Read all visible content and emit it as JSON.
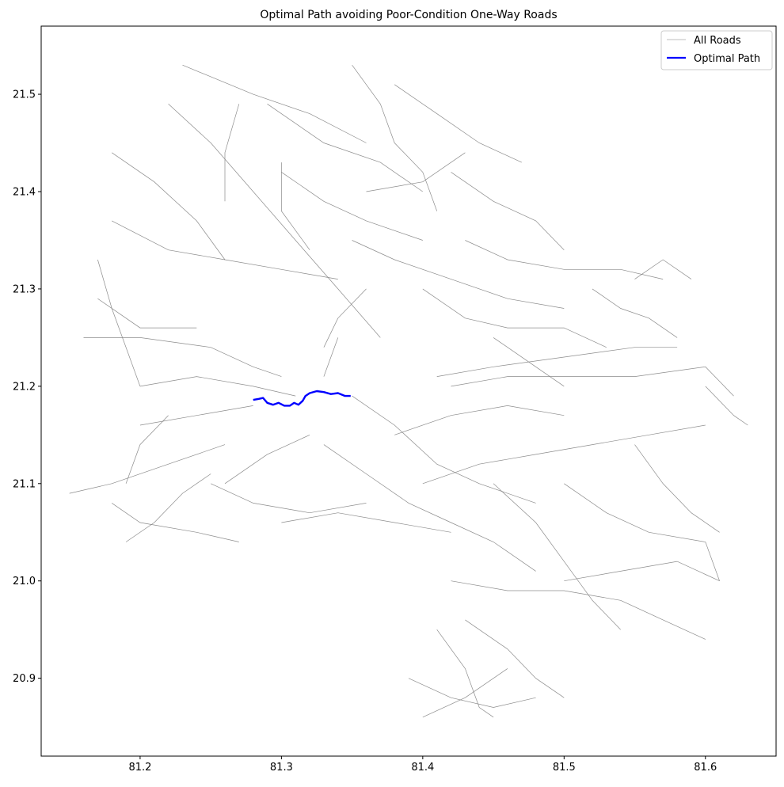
{
  "title": "Optimal Path avoiding Poor-Condition One-Way Roads",
  "legend": {
    "placement": "upper-right",
    "items": [
      {
        "label": "All Roads",
        "color": "#808080"
      },
      {
        "label": "Optimal Path",
        "color": "#0000ff"
      }
    ]
  },
  "chart_data": {
    "type": "map",
    "title": "Optimal Path avoiding Poor-Condition One-Way Roads",
    "xlim": [
      81.13,
      81.65
    ],
    "ylim": [
      20.82,
      21.57
    ],
    "xticks": [
      {
        "value": 81.2,
        "label": "81.2"
      },
      {
        "value": 81.3,
        "label": "81.3"
      },
      {
        "value": 81.4,
        "label": "81.4"
      },
      {
        "value": 81.5,
        "label": "81.5"
      },
      {
        "value": 81.6,
        "label": "81.6"
      }
    ],
    "yticks": [
      {
        "value": 20.9,
        "label": "20.9"
      },
      {
        "value": 21.0,
        "label": "21.0"
      },
      {
        "value": 21.1,
        "label": "21.1"
      },
      {
        "value": 21.2,
        "label": "21.2"
      },
      {
        "value": 21.3,
        "label": "21.3"
      },
      {
        "value": 21.4,
        "label": "21.4"
      },
      {
        "value": 21.5,
        "label": "21.5"
      }
    ],
    "grid": false,
    "series": [
      {
        "name": "All Roads",
        "color": "#808080",
        "polylines": [
          [
            [
              81.16,
              21.25
            ],
            [
              81.2,
              21.25
            ],
            [
              81.25,
              21.24
            ],
            [
              81.28,
              21.22
            ],
            [
              81.3,
              21.21
            ]
          ],
          [
            [
              81.17,
              21.29
            ],
            [
              81.2,
              21.26
            ],
            [
              81.24,
              21.26
            ]
          ],
          [
            [
              81.15,
              21.09
            ],
            [
              81.18,
              21.1
            ],
            [
              81.22,
              21.12
            ],
            [
              81.26,
              21.14
            ]
          ],
          [
            [
              81.18,
              21.08
            ],
            [
              81.2,
              21.06
            ],
            [
              81.24,
              21.05
            ],
            [
              81.27,
              21.04
            ]
          ],
          [
            [
              81.19,
              21.04
            ],
            [
              81.21,
              21.06
            ],
            [
              81.23,
              21.09
            ],
            [
              81.25,
              21.11
            ]
          ],
          [
            [
              81.2,
              21.2
            ],
            [
              81.24,
              21.21
            ],
            [
              81.28,
              21.2
            ],
            [
              81.31,
              21.19
            ]
          ],
          [
            [
              81.2,
              21.16
            ],
            [
              81.24,
              21.17
            ],
            [
              81.28,
              21.18
            ]
          ],
          [
            [
              81.22,
              21.49
            ],
            [
              81.25,
              21.45
            ],
            [
              81.28,
              21.4
            ],
            [
              81.31,
              21.35
            ],
            [
              81.34,
              21.3
            ],
            [
              81.37,
              21.25
            ]
          ],
          [
            [
              81.18,
              21.44
            ],
            [
              81.21,
              21.41
            ],
            [
              81.24,
              21.37
            ],
            [
              81.26,
              21.33
            ]
          ],
          [
            [
              81.18,
              21.37
            ],
            [
              81.22,
              21.34
            ],
            [
              81.26,
              21.33
            ],
            [
              81.3,
              21.32
            ],
            [
              81.34,
              21.31
            ]
          ],
          [
            [
              81.23,
              21.53
            ],
            [
              81.28,
              21.5
            ],
            [
              81.32,
              21.48
            ],
            [
              81.36,
              21.45
            ]
          ],
          [
            [
              81.29,
              21.49
            ],
            [
              81.33,
              21.45
            ],
            [
              81.37,
              21.43
            ],
            [
              81.4,
              21.4
            ]
          ],
          [
            [
              81.38,
              21.51
            ],
            [
              81.41,
              21.48
            ],
            [
              81.44,
              21.45
            ],
            [
              81.47,
              21.43
            ]
          ],
          [
            [
              81.35,
              21.53
            ],
            [
              81.37,
              21.49
            ],
            [
              81.38,
              21.45
            ],
            [
              81.4,
              21.42
            ],
            [
              81.41,
              21.38
            ]
          ],
          [
            [
              81.42,
              21.42
            ],
            [
              81.45,
              21.39
            ],
            [
              81.48,
              21.37
            ],
            [
              81.5,
              21.34
            ]
          ],
          [
            [
              81.3,
              21.42
            ],
            [
              81.33,
              21.39
            ],
            [
              81.36,
              21.37
            ],
            [
              81.4,
              21.35
            ]
          ],
          [
            [
              81.35,
              21.35
            ],
            [
              81.38,
              21.33
            ],
            [
              81.42,
              21.31
            ],
            [
              81.46,
              21.29
            ],
            [
              81.5,
              21.28
            ]
          ],
          [
            [
              81.43,
              21.35
            ],
            [
              81.46,
              21.33
            ],
            [
              81.5,
              21.32
            ],
            [
              81.54,
              21.32
            ],
            [
              81.57,
              21.31
            ]
          ],
          [
            [
              81.4,
              21.3
            ],
            [
              81.43,
              21.27
            ],
            [
              81.46,
              21.26
            ],
            [
              81.5,
              21.26
            ],
            [
              81.53,
              21.24
            ]
          ],
          [
            [
              81.52,
              21.3
            ],
            [
              81.54,
              21.28
            ],
            [
              81.56,
              21.27
            ],
            [
              81.58,
              21.25
            ]
          ],
          [
            [
              81.41,
              21.21
            ],
            [
              81.45,
              21.22
            ],
            [
              81.5,
              21.23
            ],
            [
              81.55,
              21.24
            ],
            [
              81.58,
              21.24
            ]
          ],
          [
            [
              81.42,
              21.2
            ],
            [
              81.46,
              21.21
            ],
            [
              81.5,
              21.21
            ],
            [
              81.55,
              21.21
            ],
            [
              81.6,
              21.22
            ],
            [
              81.62,
              21.19
            ]
          ],
          [
            [
              81.6,
              21.2
            ],
            [
              81.62,
              21.17
            ],
            [
              81.63,
              21.16
            ]
          ],
          [
            [
              81.35,
              21.19
            ],
            [
              81.38,
              21.16
            ],
            [
              81.41,
              21.12
            ],
            [
              81.44,
              21.1
            ],
            [
              81.48,
              21.08
            ]
          ],
          [
            [
              81.38,
              21.15
            ],
            [
              81.42,
              21.17
            ],
            [
              81.46,
              21.18
            ],
            [
              81.5,
              21.17
            ]
          ],
          [
            [
              81.4,
              21.1
            ],
            [
              81.44,
              21.12
            ],
            [
              81.48,
              21.13
            ],
            [
              81.52,
              21.14
            ],
            [
              81.56,
              21.15
            ],
            [
              81.6,
              21.16
            ]
          ],
          [
            [
              81.33,
              21.14
            ],
            [
              81.36,
              21.11
            ],
            [
              81.39,
              21.08
            ],
            [
              81.42,
              21.06
            ],
            [
              81.45,
              21.04
            ],
            [
              81.48,
              21.01
            ]
          ],
          [
            [
              81.45,
              21.1
            ],
            [
              81.48,
              21.06
            ],
            [
              81.5,
              21.02
            ],
            [
              81.52,
              20.98
            ],
            [
              81.54,
              20.95
            ]
          ],
          [
            [
              81.5,
              21.1
            ],
            [
              81.53,
              21.07
            ],
            [
              81.56,
              21.05
            ],
            [
              81.6,
              21.04
            ],
            [
              81.61,
              21.0
            ]
          ],
          [
            [
              81.55,
              21.14
            ],
            [
              81.57,
              21.1
            ],
            [
              81.59,
              21.07
            ],
            [
              81.61,
              21.05
            ]
          ],
          [
            [
              81.5,
              21.0
            ],
            [
              81.54,
              21.01
            ],
            [
              81.58,
              21.02
            ],
            [
              81.61,
              21.0
            ]
          ],
          [
            [
              81.42,
              21.0
            ],
            [
              81.46,
              20.99
            ],
            [
              81.5,
              20.99
            ],
            [
              81.54,
              20.98
            ],
            [
              81.57,
              20.96
            ],
            [
              81.6,
              20.94
            ]
          ],
          [
            [
              81.43,
              20.96
            ],
            [
              81.46,
              20.93
            ],
            [
              81.48,
              20.9
            ],
            [
              81.5,
              20.88
            ]
          ],
          [
            [
              81.39,
              20.9
            ],
            [
              81.42,
              20.88
            ],
            [
              81.45,
              20.87
            ],
            [
              81.48,
              20.88
            ]
          ],
          [
            [
              81.41,
              20.95
            ],
            [
              81.43,
              20.91
            ],
            [
              81.44,
              20.87
            ],
            [
              81.45,
              20.86
            ]
          ],
          [
            [
              81.4,
              20.86
            ],
            [
              81.43,
              20.88
            ],
            [
              81.46,
              20.91
            ]
          ],
          [
            [
              81.3,
              21.06
            ],
            [
              81.34,
              21.07
            ],
            [
              81.38,
              21.06
            ],
            [
              81.42,
              21.05
            ]
          ],
          [
            [
              81.25,
              21.1
            ],
            [
              81.28,
              21.08
            ],
            [
              81.32,
              21.07
            ],
            [
              81.36,
              21.08
            ]
          ],
          [
            [
              81.26,
              21.1
            ],
            [
              81.29,
              21.13
            ],
            [
              81.32,
              21.15
            ]
          ],
          [
            [
              81.22,
              21.17
            ],
            [
              81.2,
              21.14
            ],
            [
              81.19,
              21.1
            ]
          ],
          [
            [
              81.2,
              21.2
            ],
            [
              81.19,
              21.24
            ],
            [
              81.18,
              21.28
            ],
            [
              81.17,
              21.33
            ]
          ],
          [
            [
              81.26,
              21.39
            ],
            [
              81.26,
              21.44
            ],
            [
              81.27,
              21.49
            ]
          ],
          [
            [
              81.34,
              21.25
            ],
            [
              81.33,
              21.21
            ]
          ],
          [
            [
              81.45,
              21.25
            ],
            [
              81.48,
              21.22
            ],
            [
              81.5,
              21.2
            ]
          ],
          [
            [
              81.36,
              21.3
            ],
            [
              81.34,
              21.27
            ],
            [
              81.33,
              21.24
            ]
          ],
          [
            [
              81.55,
              21.31
            ],
            [
              81.57,
              21.33
            ],
            [
              81.59,
              21.31
            ]
          ],
          [
            [
              81.3,
              21.43
            ],
            [
              81.3,
              21.38
            ],
            [
              81.32,
              21.34
            ]
          ],
          [
            [
              81.36,
              21.4
            ],
            [
              81.4,
              21.41
            ],
            [
              81.43,
              21.44
            ]
          ]
        ]
      },
      {
        "name": "Optimal Path",
        "color": "#0000ff",
        "polylines": [
          [
            [
              81.28,
              21.186
            ],
            [
              81.284,
              21.187
            ],
            [
              81.287,
              21.188
            ],
            [
              81.29,
              21.183
            ],
            [
              81.294,
              21.181
            ],
            [
              81.298,
              21.183
            ],
            [
              81.302,
              21.18
            ],
            [
              81.306,
              21.18
            ],
            [
              81.309,
              21.183
            ],
            [
              81.312,
              21.181
            ],
            [
              81.315,
              21.185
            ],
            [
              81.317,
              21.19
            ],
            [
              81.32,
              21.193
            ],
            [
              81.325,
              21.195
            ],
            [
              81.33,
              21.194
            ],
            [
              81.335,
              21.192
            ],
            [
              81.34,
              21.193
            ],
            [
              81.345,
              21.19
            ],
            [
              81.349,
              21.19
            ]
          ]
        ]
      }
    ]
  }
}
